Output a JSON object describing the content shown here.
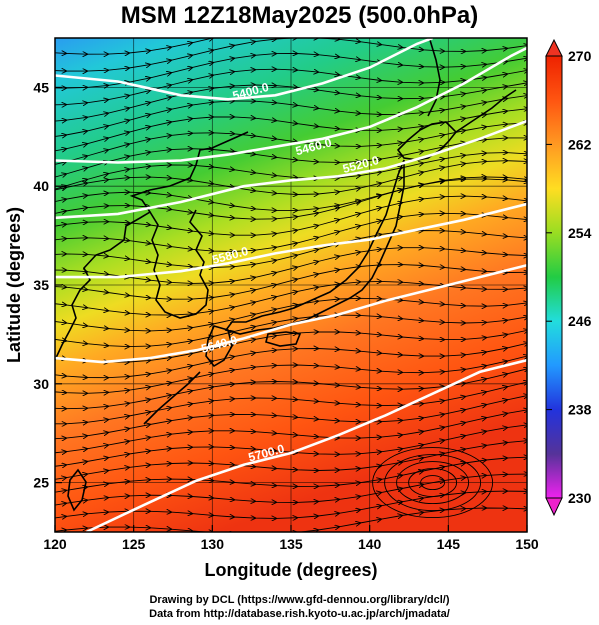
{
  "title": "MSM 12Z18May2025 (500.0hPa)",
  "x_axis": {
    "label": "Longitude (degrees)",
    "range": [
      120,
      150
    ],
    "ticks": [
      "120",
      "125",
      "130",
      "135",
      "140",
      "145",
      "150"
    ],
    "tick_values": [
      120,
      125,
      130,
      135,
      140,
      145,
      150
    ]
  },
  "y_axis": {
    "label": "Latitude  (degrees)",
    "range": [
      22.5,
      47.5
    ],
    "ticks": [
      "25",
      "30",
      "35",
      "40",
      "45"
    ],
    "tick_values": [
      25,
      30,
      35,
      40,
      45
    ]
  },
  "colorbar": {
    "min": 230,
    "max": 270,
    "ticks": [
      "270",
      "262",
      "254",
      "246",
      "238",
      "230"
    ],
    "tick_values": [
      270,
      262,
      254,
      246,
      238,
      230
    ],
    "colors": [
      "#ff22ff",
      "#2222cc",
      "#2288ff",
      "#22dddd",
      "#22cc55",
      "#66dd22",
      "#ccee22",
      "#ffcc22",
      "#ff8822",
      "#ee3311",
      "#dd2211"
    ]
  },
  "contours": {
    "color": "#ffffff",
    "labels": [
      {
        "text": "5400.0",
        "lon": 132.5,
        "lat": 44.6
      },
      {
        "text": "5460.0",
        "lon": 136.5,
        "lat": 41.8
      },
      {
        "text": "5520.0",
        "lon": 139.5,
        "lat": 40.9
      },
      {
        "text": "5580.0",
        "lon": 131.2,
        "lat": 36.3
      },
      {
        "text": "5640.0",
        "lon": 130.5,
        "lat": 31.8
      },
      {
        "text": "5700.0",
        "lon": 133.5,
        "lat": 26.3
      }
    ],
    "lines": [
      [
        [
          120,
          45.6
        ],
        [
          124,
          45.3
        ],
        [
          128,
          44.6
        ],
        [
          131,
          44.4
        ],
        [
          134,
          44.6
        ],
        [
          137,
          45.2
        ],
        [
          140,
          46.0
        ],
        [
          143,
          47.2
        ],
        [
          144,
          47.5
        ]
      ],
      [
        [
          120,
          41.3
        ],
        [
          124,
          41.2
        ],
        [
          128,
          41.3
        ],
        [
          131,
          41.6
        ],
        [
          134,
          42.0
        ],
        [
          137,
          42.4
        ],
        [
          140,
          43.0
        ],
        [
          143,
          44.0
        ],
        [
          146,
          45.2
        ],
        [
          149,
          46.6
        ],
        [
          150,
          47.0
        ]
      ],
      [
        [
          120,
          38.4
        ],
        [
          124,
          38.6
        ],
        [
          128,
          39.2
        ],
        [
          132,
          40.0
        ],
        [
          135,
          40.3
        ],
        [
          138,
          40.5
        ],
        [
          141,
          40.9
        ],
        [
          144,
          41.6
        ],
        [
          147,
          42.4
        ],
        [
          150,
          43.3
        ]
      ],
      [
        [
          120,
          35.4
        ],
        [
          124,
          35.4
        ],
        [
          128,
          35.7
        ],
        [
          131,
          36.1
        ],
        [
          134,
          36.6
        ],
        [
          137,
          37.0
        ],
        [
          140,
          37.3
        ],
        [
          143,
          37.8
        ],
        [
          146,
          38.3
        ],
        [
          150,
          39.1
        ]
      ],
      [
        [
          120,
          31.3
        ],
        [
          123,
          31.1
        ],
        [
          126,
          31.3
        ],
        [
          129,
          31.7
        ],
        [
          132,
          32.3
        ],
        [
          135,
          33.0
        ],
        [
          138,
          33.5
        ],
        [
          141,
          34.2
        ],
        [
          144,
          34.8
        ],
        [
          147,
          35.4
        ],
        [
          150,
          36.0
        ]
      ],
      [
        [
          122,
          22.5
        ],
        [
          126,
          24.0
        ],
        [
          129,
          25.1
        ],
        [
          132,
          25.9
        ],
        [
          135,
          26.5
        ],
        [
          138,
          27.4
        ],
        [
          141,
          28.4
        ],
        [
          144,
          29.5
        ],
        [
          147,
          30.6
        ],
        [
          150,
          31.2
        ]
      ]
    ]
  },
  "credits": {
    "line1": "Drawing by DCL (https://www.gfd-dennou.org/library/dcl/)",
    "line2": "Data from http://database.rish.kyoto-u.ac.jp/arch/jmadata/"
  }
}
